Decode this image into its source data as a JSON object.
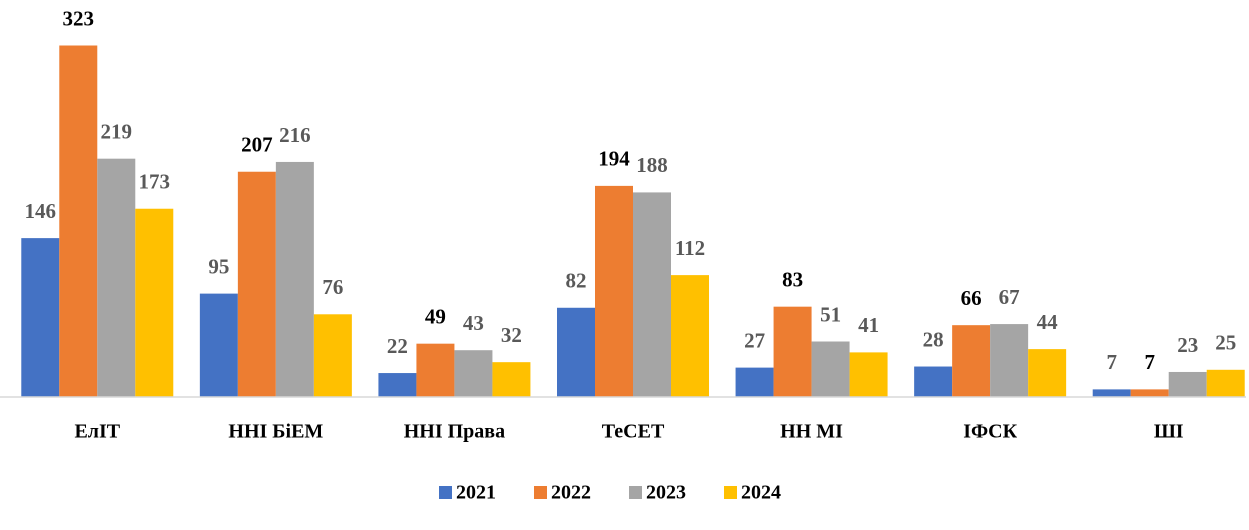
{
  "chart_data": {
    "type": "bar",
    "categories": [
      "ЕлІТ",
      "ННІ БіЕМ",
      "ННІ Права",
      "ТеСЕТ",
      "НН МІ",
      "ІФСК",
      "ШІ"
    ],
    "series": [
      {
        "name": "2021",
        "color": "#4472c4",
        "label_color": "#595959",
        "values": [
          146,
          95,
          22,
          82,
          27,
          28,
          7
        ]
      },
      {
        "name": "2022",
        "color": "#ed7d31",
        "label_color": "#000000",
        "values": [
          323,
          207,
          49,
          194,
          83,
          66,
          7
        ]
      },
      {
        "name": "2023",
        "color": "#a5a5a5",
        "label_color": "#595959",
        "values": [
          219,
          216,
          43,
          188,
          51,
          67,
          23
        ]
      },
      {
        "name": "2024",
        "color": "#ffc000",
        "label_color": "#595959",
        "values": [
          173,
          76,
          32,
          112,
          41,
          44,
          25
        ]
      }
    ],
    "ylim": [
      0,
      340
    ],
    "legend": "bottom"
  }
}
